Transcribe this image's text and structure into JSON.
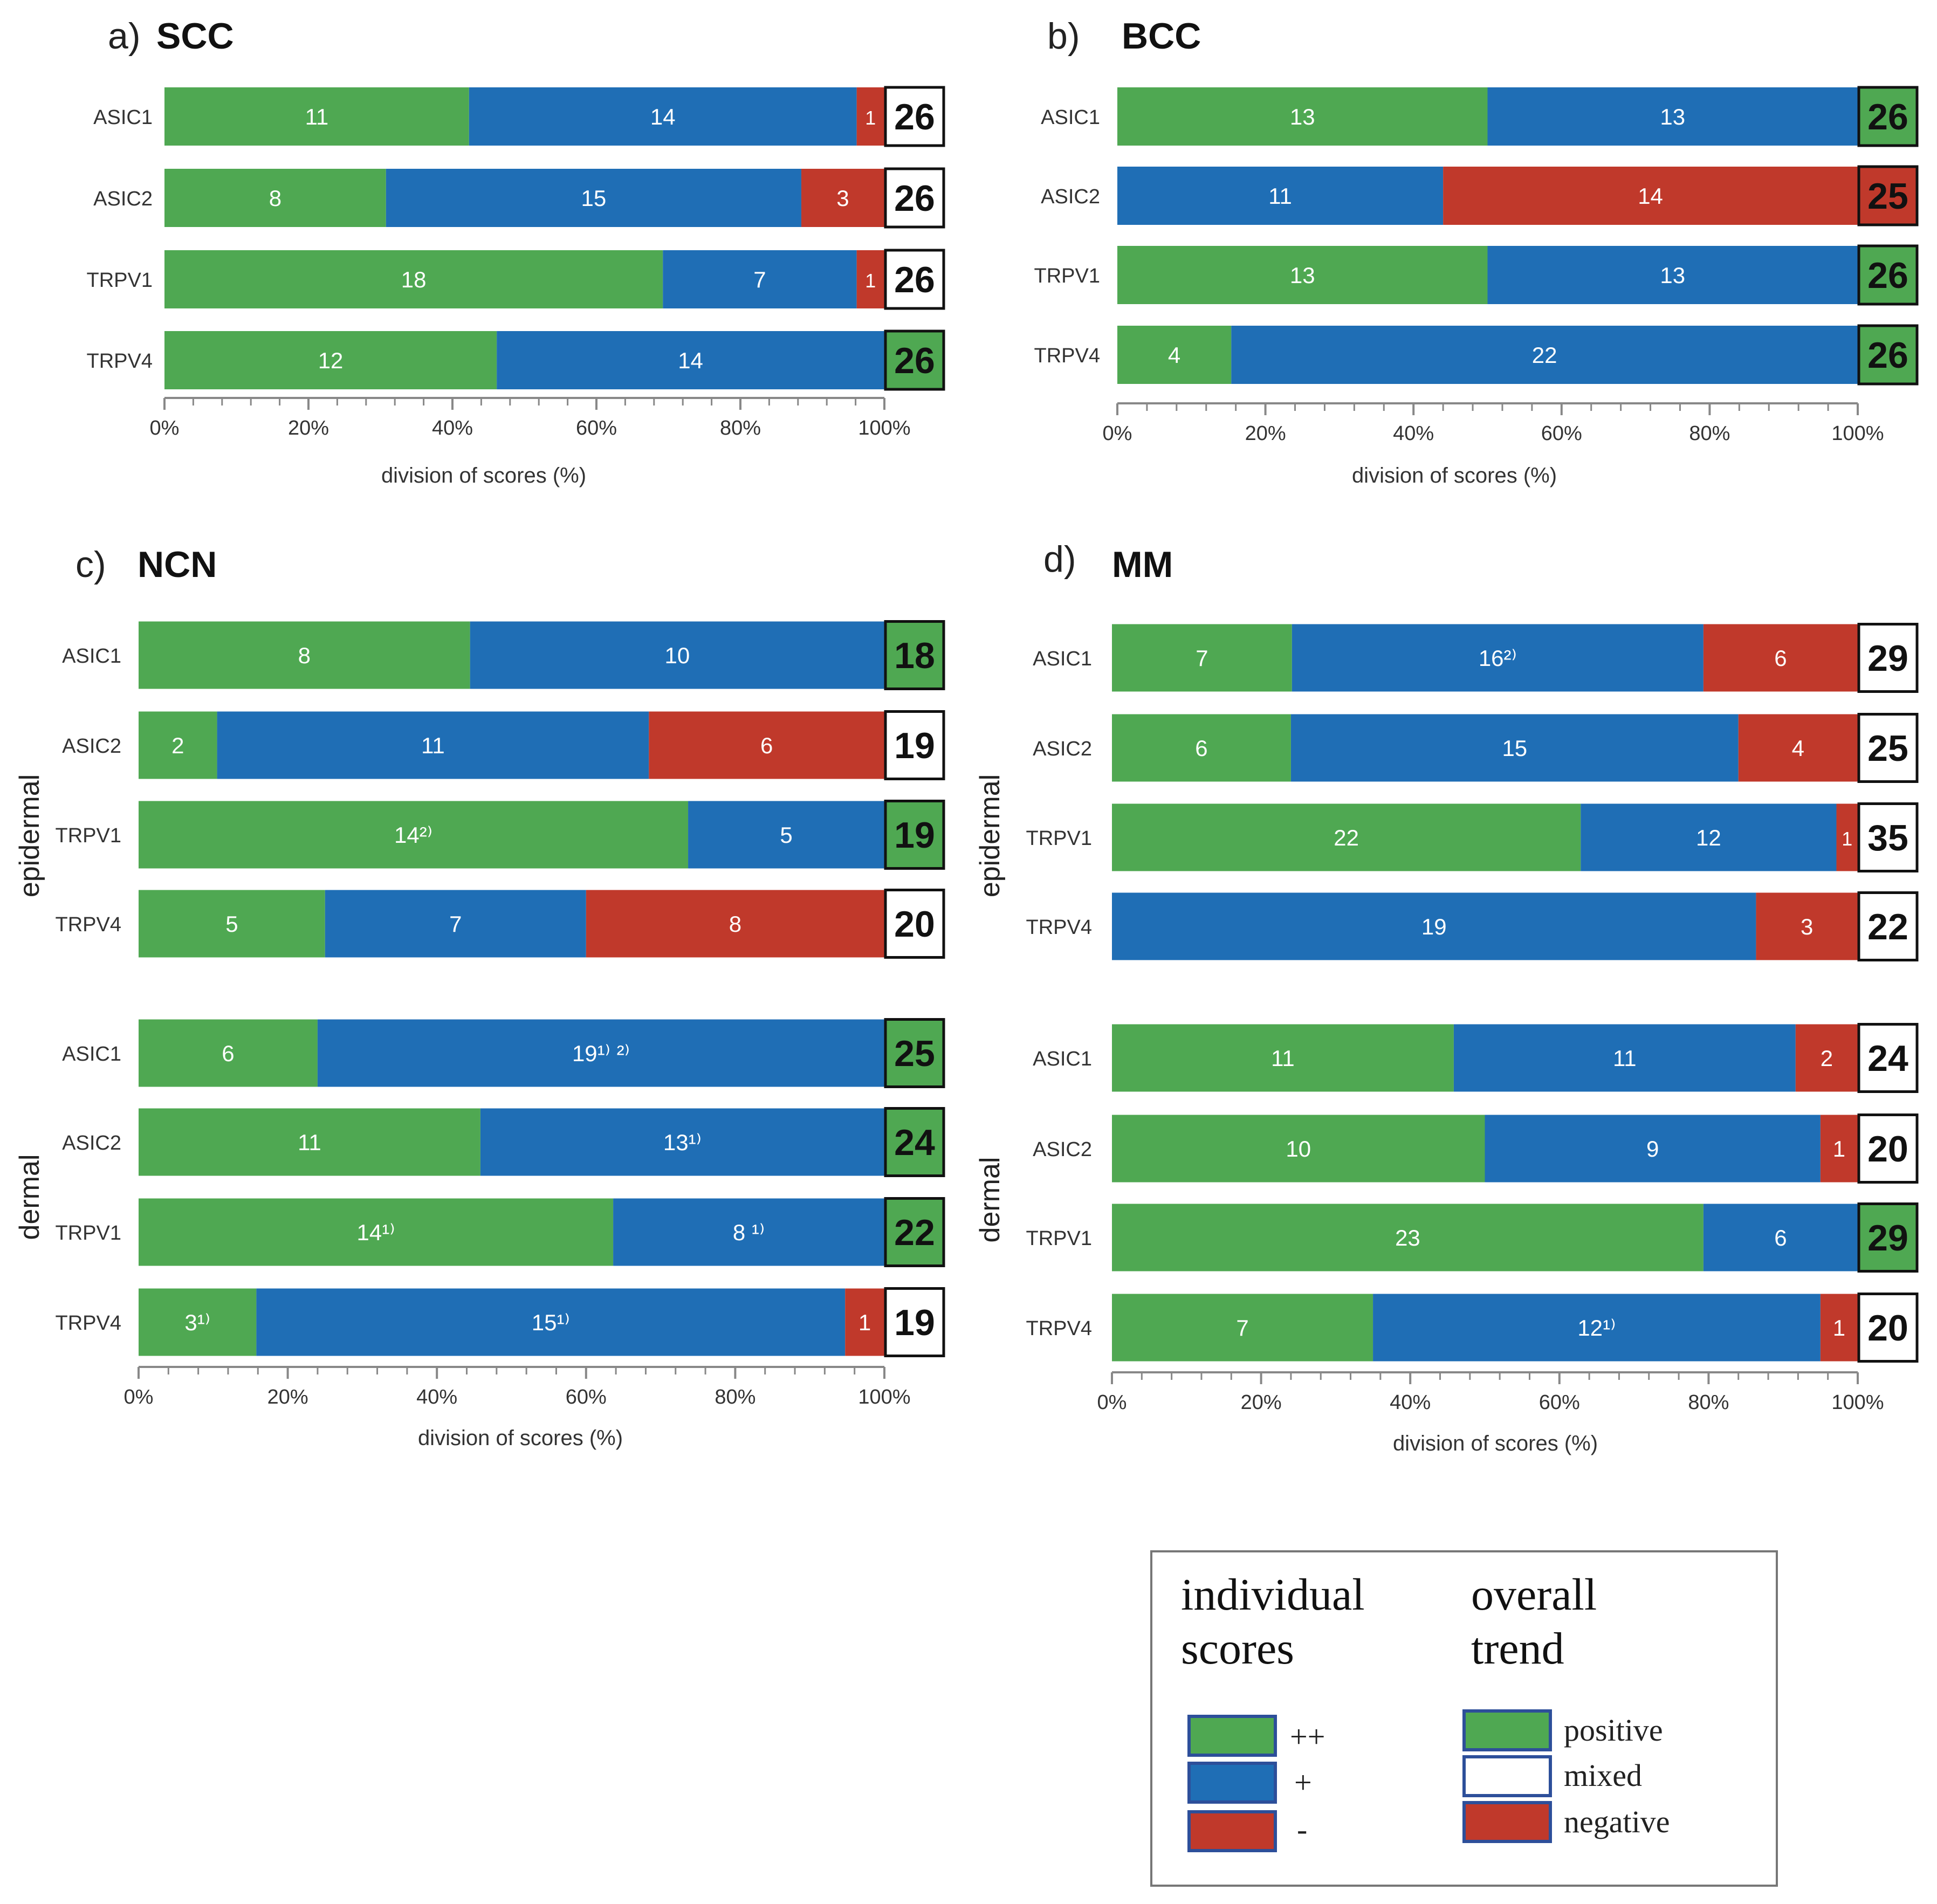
{
  "colors": {
    "positive": "#4fa852",
    "plus": "#1f6eb5",
    "negative": "#c0392b",
    "mixed": "#ffffff",
    "axis": "#888888",
    "bar_text": "#ffffff"
  },
  "x_axis": {
    "ticks": [
      "0%",
      "20%",
      "40%",
      "60%",
      "80%",
      "100%"
    ],
    "label_ab": "division of scores (%)",
    "label_cd": "division of scores  (%)"
  },
  "chart_data": [
    {
      "type": "bar",
      "stacked": true,
      "orientation": "horizontal",
      "panel_letter": "a)",
      "title": "SCC",
      "xlabel": "division of scores (%)",
      "xlim": [
        0,
        100
      ],
      "groups": [
        {
          "label": "",
          "rows": [
            {
              "category": "ASIC1",
              "values": [
                11,
                14,
                1
              ],
              "labels": [
                "11",
                "14",
                "1"
              ],
              "total": "26",
              "trend": "mixed"
            },
            {
              "category": "ASIC2",
              "values": [
                8,
                15,
                3
              ],
              "labels": [
                "8",
                "15",
                "3"
              ],
              "total": "26",
              "trend": "mixed"
            },
            {
              "category": "TRPV1",
              "values": [
                18,
                7,
                1
              ],
              "labels": [
                "18",
                "7",
                "1"
              ],
              "total": "26",
              "trend": "mixed"
            },
            {
              "category": "TRPV4",
              "values": [
                12,
                14,
                0
              ],
              "labels": [
                "12",
                "14",
                ""
              ],
              "total": "26",
              "trend": "positive"
            }
          ]
        }
      ]
    },
    {
      "type": "bar",
      "stacked": true,
      "orientation": "horizontal",
      "panel_letter": "b)",
      "title": "BCC",
      "xlabel": "division of scores (%)",
      "xlim": [
        0,
        100
      ],
      "groups": [
        {
          "label": "",
          "rows": [
            {
              "category": "ASIC1",
              "values": [
                13,
                13,
                0
              ],
              "labels": [
                "13",
                "13",
                ""
              ],
              "total": "26",
              "trend": "positive"
            },
            {
              "category": "ASIC2",
              "values": [
                0,
                11,
                14
              ],
              "labels": [
                "",
                "11",
                "14"
              ],
              "total": "25",
              "trend": "negative"
            },
            {
              "category": "TRPV1",
              "values": [
                13,
                13,
                0
              ],
              "labels": [
                "13",
                "13",
                ""
              ],
              "total": "26",
              "trend": "positive"
            },
            {
              "category": "TRPV4",
              "values": [
                4,
                22,
                0
              ],
              "labels": [
                "4",
                "22",
                ""
              ],
              "total": "26",
              "trend": "positive"
            }
          ]
        }
      ]
    },
    {
      "type": "bar",
      "stacked": true,
      "orientation": "horizontal",
      "panel_letter": "c)",
      "title": "NCN",
      "xlabel": "division of scores  (%)",
      "xlim": [
        0,
        100
      ],
      "groups": [
        {
          "label": "epidermal",
          "rows": [
            {
              "category": "ASIC1",
              "values": [
                8,
                10,
                0
              ],
              "labels": [
                "8",
                "10",
                ""
              ],
              "total": "18",
              "trend": "positive"
            },
            {
              "category": "ASIC2",
              "values": [
                2,
                11,
                6
              ],
              "labels": [
                "2",
                "11",
                "6"
              ],
              "total": "19",
              "trend": "mixed"
            },
            {
              "category": "TRPV1",
              "values": [
                14,
                5,
                0
              ],
              "labels": [
                "14²⁾",
                "5",
                ""
              ],
              "total": "19",
              "trend": "positive"
            },
            {
              "category": "TRPV4",
              "values": [
                5,
                7,
                8
              ],
              "labels": [
                "5",
                "7",
                "8"
              ],
              "total": "20",
              "trend": "mixed"
            }
          ]
        },
        {
          "label": "dermal",
          "rows": [
            {
              "category": "ASIC1",
              "values": [
                6,
                19,
                0
              ],
              "labels": [
                "6",
                "19¹⁾ ²⁾",
                ""
              ],
              "total": "25",
              "trend": "positive"
            },
            {
              "category": "ASIC2",
              "values": [
                11,
                13,
                0
              ],
              "labels": [
                "11",
                "13¹⁾",
                ""
              ],
              "total": "24",
              "trend": "positive"
            },
            {
              "category": "TRPV1",
              "values": [
                14,
                8,
                0
              ],
              "labels": [
                "14¹⁾",
                "8 ¹⁾",
                ""
              ],
              "total": "22",
              "trend": "positive"
            },
            {
              "category": "TRPV4",
              "values": [
                3,
                15,
                1
              ],
              "labels": [
                "3¹⁾",
                "15¹⁾",
                "1"
              ],
              "total": "19",
              "trend": "mixed"
            }
          ]
        }
      ]
    },
    {
      "type": "bar",
      "stacked": true,
      "orientation": "horizontal",
      "panel_letter": "d)",
      "title": "MM",
      "xlabel": "division of scores (%)",
      "xlim": [
        0,
        100
      ],
      "groups": [
        {
          "label": "epidermal",
          "rows": [
            {
              "category": "ASIC1",
              "values": [
                7,
                16,
                6
              ],
              "labels": [
                "7",
                "16²⁾",
                "6"
              ],
              "total": "29",
              "trend": "mixed"
            },
            {
              "category": "ASIC2",
              "values": [
                6,
                15,
                4
              ],
              "labels": [
                "6",
                "15",
                "4"
              ],
              "total": "25",
              "trend": "mixed"
            },
            {
              "category": "TRPV1",
              "values": [
                22,
                12,
                1
              ],
              "labels": [
                "22",
                "12",
                "1"
              ],
              "total": "35",
              "trend": "mixed"
            },
            {
              "category": "TRPV4",
              "values": [
                0,
                19,
                3
              ],
              "labels": [
                "",
                "19",
                "3"
              ],
              "total": "22",
              "trend": "mixed"
            }
          ]
        },
        {
          "label": "dermal",
          "rows": [
            {
              "category": "ASIC1",
              "values": [
                11,
                11,
                2
              ],
              "labels": [
                "11",
                "11",
                "2"
              ],
              "total": "24",
              "trend": "mixed"
            },
            {
              "category": "ASIC2",
              "values": [
                10,
                9,
                1
              ],
              "labels": [
                "10",
                "9",
                "1"
              ],
              "total": "20",
              "trend": "mixed"
            },
            {
              "category": "TRPV1",
              "values": [
                23,
                6,
                0
              ],
              "labels": [
                "23",
                "6",
                ""
              ],
              "total": "29",
              "trend": "positive"
            },
            {
              "category": "TRPV4",
              "values": [
                7,
                12,
                1
              ],
              "labels": [
                "7",
                "12¹⁾",
                "1"
              ],
              "total": "20",
              "trend": "mixed"
            }
          ]
        }
      ]
    }
  ],
  "legend": {
    "left_heading_line1": "individual",
    "left_heading_line2": "scores",
    "right_heading_line1": "overall",
    "right_heading_line2": "trend",
    "individual": [
      {
        "color": "#4fa852",
        "label": "++"
      },
      {
        "color": "#1f6eb5",
        "label": "+"
      },
      {
        "color": "#c0392b",
        "label": "-"
      }
    ],
    "trend": [
      {
        "color": "#4fa852",
        "label": "positive"
      },
      {
        "color": "#ffffff",
        "label": "mixed"
      },
      {
        "color": "#c0392b",
        "label": "negative"
      }
    ]
  }
}
